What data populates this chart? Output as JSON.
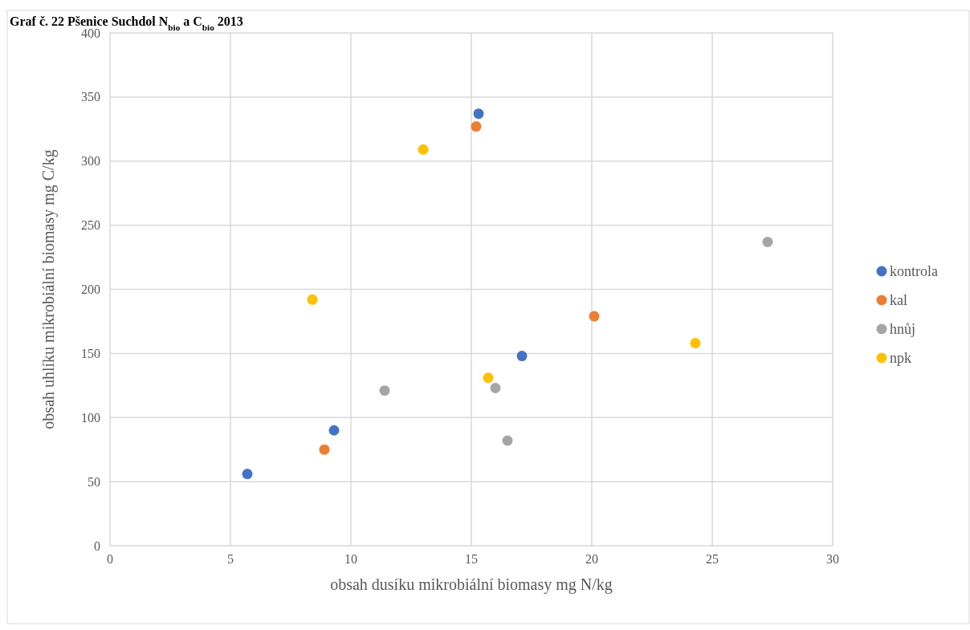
{
  "chart_data": {
    "type": "scatter",
    "title": "Graf č. 22 Pšenice Suchdol N$_{bio}$ a C$_{bio}$ 2013",
    "xlabel": "obsah dusíku mikrobiální biomasy mg N/kg",
    "ylabel": "obsah uhlíku mikrobiální biomasy mg C/kg",
    "xlim": [
      0,
      30
    ],
    "xticks": [
      0,
      5,
      10,
      15,
      20,
      25,
      30
    ],
    "ylim": [
      0,
      400
    ],
    "yticks": [
      0,
      50,
      100,
      150,
      200,
      250,
      300,
      350,
      400
    ],
    "grid": true,
    "legend": "right",
    "marker": "circle",
    "series": [
      {
        "name": "kontrola",
        "color": "#4472c4",
        "x": [
          5.7,
          9.3,
          15.3,
          17.1
        ],
        "values": [
          56,
          90,
          337,
          148
        ]
      },
      {
        "name": "kal",
        "color": "#ed7d31",
        "x": [
          8.9,
          15.2,
          20.1
        ],
        "values": [
          75,
          327,
          179
        ]
      },
      {
        "name": "hnůj",
        "color": "#a5a5a5",
        "x": [
          11.4,
          16.0,
          16.5,
          27.3
        ],
        "values": [
          121,
          123,
          82,
          237
        ]
      },
      {
        "name": "npk",
        "color": "#ffc000",
        "x": [
          8.4,
          13.0,
          15.7,
          24.3
        ],
        "values": [
          192,
          309,
          131,
          158
        ]
      }
    ]
  }
}
